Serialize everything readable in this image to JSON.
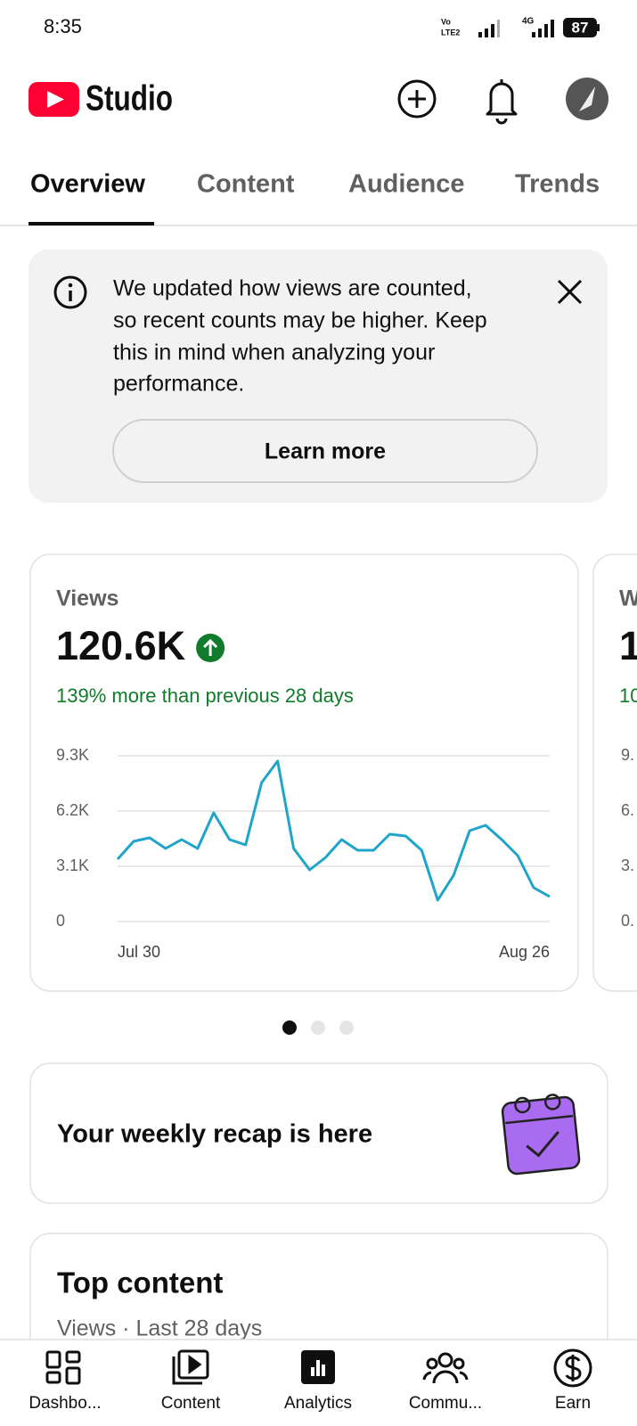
{
  "status_bar": {
    "time": "8:35",
    "carrier_labels": [
      "Vo",
      "LTE2",
      "4G"
    ],
    "battery": "87"
  },
  "header": {
    "title": "Studio"
  },
  "tabs": [
    "Overview",
    "Content",
    "Audience",
    "Trends"
  ],
  "banner": {
    "text_lines": [
      "We updated how views are counted,",
      "so recent counts may be higher. Keep",
      "this in mind when analyzing your",
      "performance."
    ],
    "button": "Learn more"
  },
  "views_card": {
    "label": "Views",
    "value": "120.6K",
    "change": "139% more than previous 28 days",
    "chart_data": {
      "type": "line",
      "categories": [
        "Jul 30",
        null,
        null,
        null,
        null,
        null,
        null,
        null,
        null,
        null,
        null,
        null,
        null,
        null,
        null,
        null,
        null,
        null,
        null,
        null,
        null,
        null,
        null,
        null,
        null,
        null,
        null,
        "Aug 26"
      ],
      "series": [
        {
          "name": "Views",
          "color": "#1ea5c9",
          "values": [
            3500,
            4500,
            4700,
            4100,
            4600,
            4100,
            6100,
            4600,
            4300,
            7800,
            9000,
            4100,
            2900,
            3600,
            4600,
            4000,
            4000,
            4900,
            4800,
            4000,
            1200,
            2600,
            5100,
            5400,
            4600,
            3700,
            1900,
            1400
          ]
        }
      ],
      "ylim": [
        0,
        9300
      ],
      "yticks": [
        0,
        {
          "value": 3100,
          "label": "3.1K"
        },
        {
          "value": 6200,
          "label": "6.2K"
        },
        {
          "value": 9300,
          "label": "9.3K"
        }
      ],
      "grid": true
    }
  },
  "peek_card": {
    "label": "W",
    "value": "1",
    "change": "10",
    "ytick_labels": [
      "9.",
      "6.",
      "3.",
      "0."
    ]
  },
  "recap": {
    "title": "Your weekly recap is here"
  },
  "top_content": {
    "title": "Top content",
    "subtitle": "Views · Last 28 days"
  },
  "nav": [
    "Dashbo...",
    "Content",
    "Analytics",
    "Commu...",
    "Earn"
  ]
}
